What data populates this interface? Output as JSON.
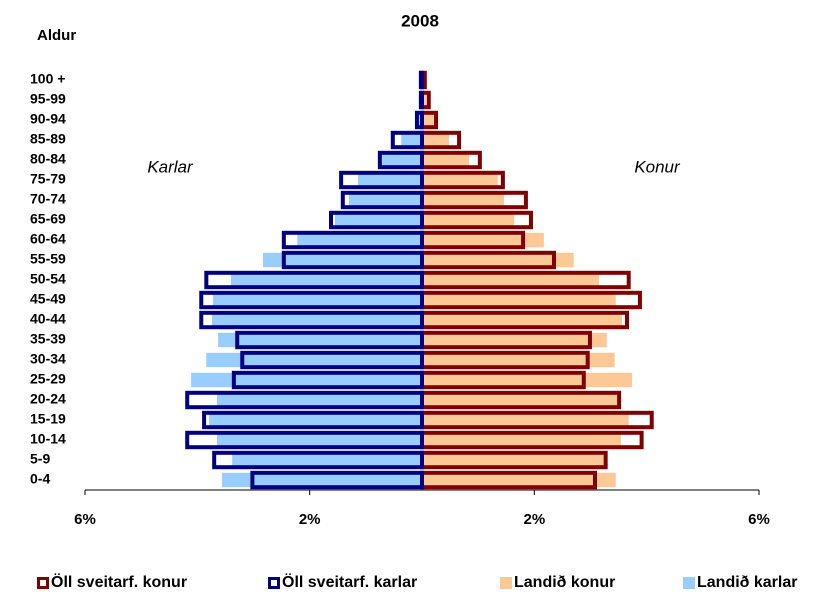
{
  "chart_data": {
    "type": "pyramid",
    "title": "2008",
    "y_label": "Aldur",
    "annotations": [
      "Karlar",
      "Konur"
    ],
    "categories": [
      "0-4",
      "5-9",
      "10-14",
      "15-19",
      "20-24",
      "25-29",
      "30-34",
      "35-39",
      "40-44",
      "45-49",
      "50-54",
      "55-59",
      "60-64",
      "65-69",
      "70-74",
      "75-79",
      "80-84",
      "85-89",
      "90-94",
      "95-99",
      "100 +"
    ],
    "series": [
      {
        "name": "Öll sveitarf. konur",
        "color": "#800000",
        "style": "outline",
        "values": [
          3.08,
          3.27,
          3.91,
          4.09,
          3.51,
          2.88,
          2.95,
          2.99,
          3.65,
          3.88,
          3.68,
          2.35,
          1.8,
          1.94,
          1.85,
          1.44,
          1.03,
          0.66,
          0.25,
          0.12,
          0.05
        ]
      },
      {
        "name": "Öll sveitarf. karlar",
        "color": "#000080",
        "style": "outline",
        "values": [
          -3.02,
          -3.7,
          -4.18,
          -3.88,
          -4.18,
          -3.35,
          -3.2,
          -3.29,
          -3.93,
          -3.93,
          -3.84,
          -2.46,
          -2.46,
          -1.62,
          -1.41,
          -1.44,
          -0.75,
          -0.52,
          -0.09,
          -0.02,
          -0.02
        ]
      },
      {
        "name": "Landið konur",
        "color": "#fcc896",
        "style": "fill",
        "values": [
          3.45,
          3.27,
          3.54,
          3.68,
          3.51,
          3.74,
          3.43,
          3.29,
          3.56,
          3.45,
          3.15,
          2.7,
          2.17,
          1.64,
          1.46,
          1.35,
          0.84,
          0.48,
          0.21,
          0.07,
          0.02
        ]
      },
      {
        "name": "Landið karlar",
        "color": "#99ccff",
        "style": "fill",
        "values": [
          -3.56,
          -3.38,
          -3.65,
          -3.79,
          -3.65,
          -4.11,
          -3.84,
          -3.63,
          -3.74,
          -3.72,
          -3.4,
          -2.83,
          -2.22,
          -1.55,
          -1.3,
          -1.14,
          -0.71,
          -0.37,
          -0.12,
          -0.04,
          -0.01
        ]
      }
    ],
    "xlim": [
      -6,
      6
    ],
    "xticks": [
      {
        "value": -6,
        "label": "6%"
      },
      {
        "value": -2,
        "label": "2%"
      },
      {
        "value": 2,
        "label": "2%"
      },
      {
        "value": 6,
        "label": "6%"
      }
    ]
  }
}
